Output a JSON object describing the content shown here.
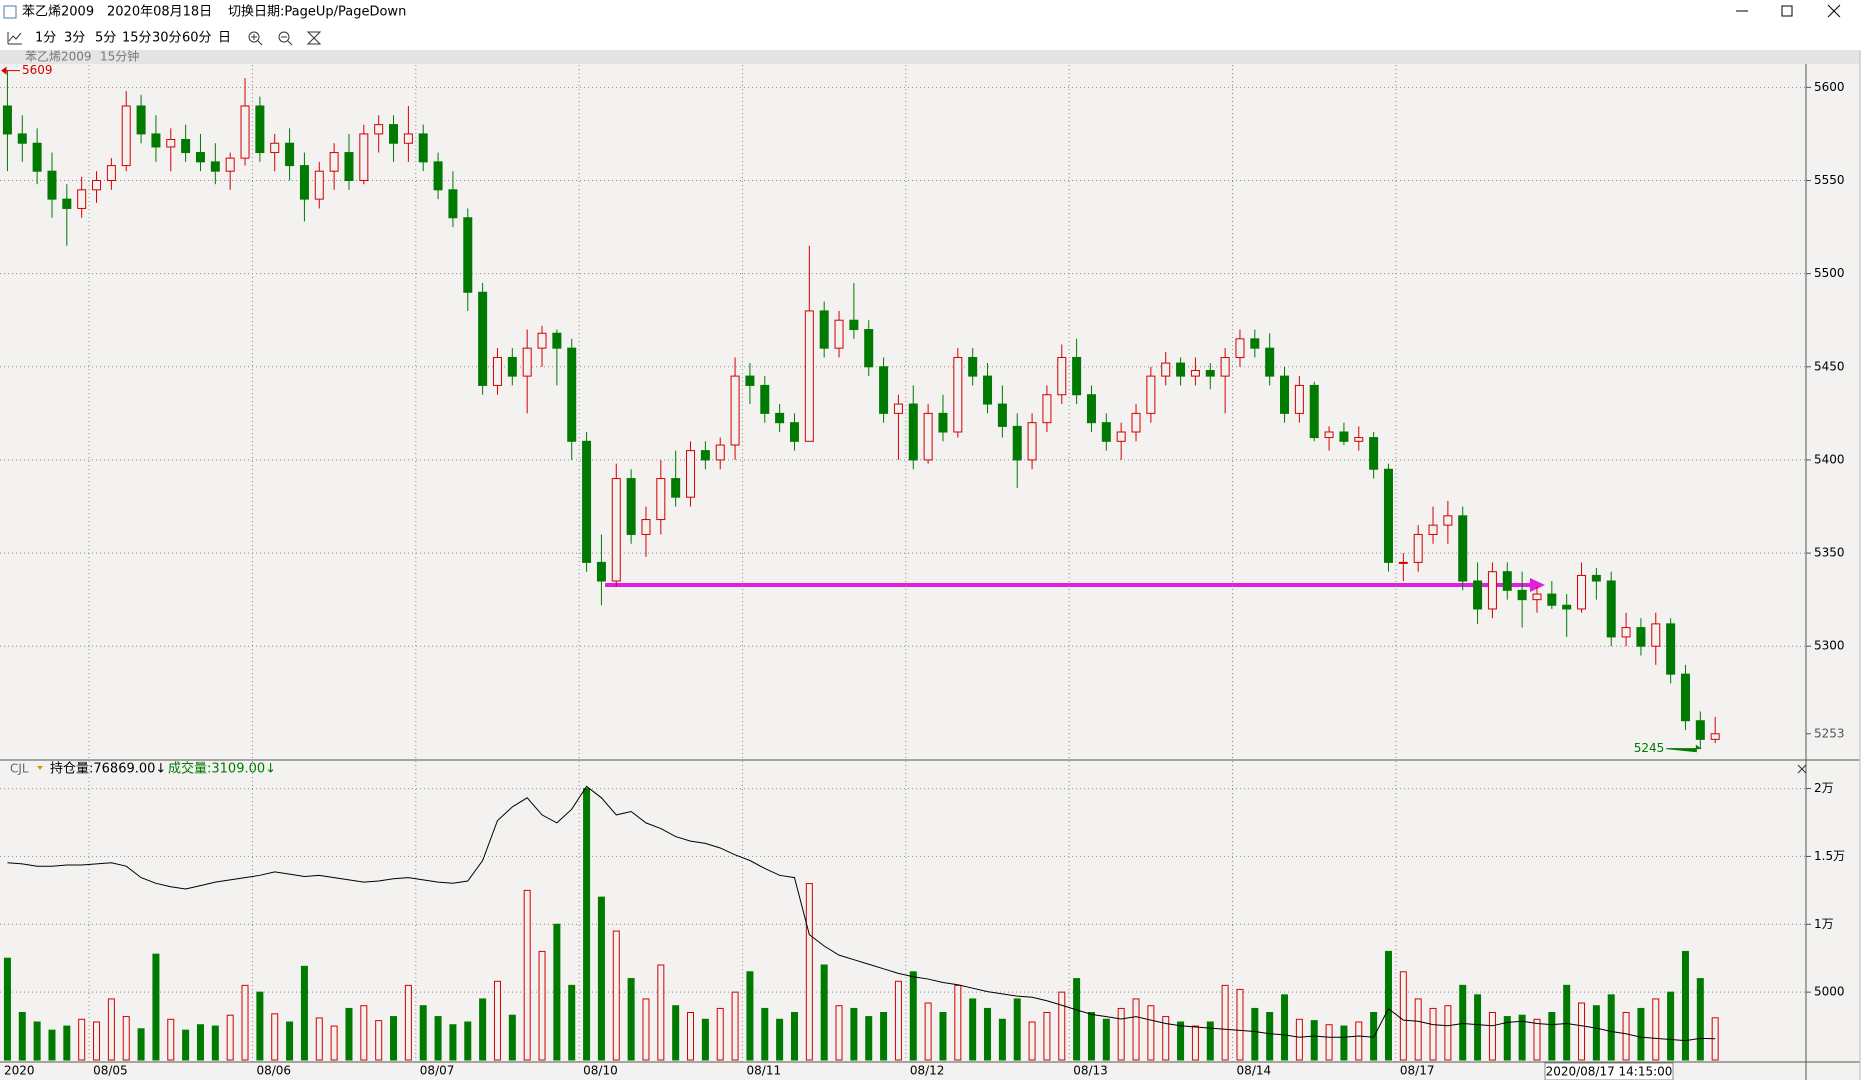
{
  "window": {
    "symbol": "苯乙烯2009",
    "date": "2020年08月18日",
    "hint": "切换日期:PageUp/PageDown"
  },
  "toolbar": [
    "1分",
    "3分",
    "5分",
    "15分",
    "30分",
    "60分",
    "日"
  ],
  "subheader": {
    "symbol": "苯乙烯2009",
    "period": "15分钟"
  },
  "cursor_time": "2020/08/17 14:15:00",
  "chart_data": [
    {
      "type": "candlestick",
      "up_color": "#d40000",
      "down_color": "#007a00",
      "grid": true,
      "ylim": [
        5240,
        5612
      ],
      "yticks": [
        5300,
        5350,
        5400,
        5450,
        5500,
        5550,
        5600
      ],
      "high_mark": 5609,
      "low_mark": 5245,
      "last_price": 5253,
      "categories": [
        "2020",
        null,
        null,
        null,
        null,
        null,
        "08/05",
        null,
        null,
        null,
        null,
        null,
        null,
        null,
        null,
        null,
        null,
        "08/06",
        null,
        null,
        null,
        null,
        null,
        null,
        null,
        null,
        null,
        null,
        "08/07",
        null,
        null,
        null,
        null,
        null,
        null,
        null,
        null,
        null,
        null,
        "08/10",
        null,
        null,
        null,
        null,
        null,
        null,
        null,
        null,
        null,
        null,
        "08/11",
        null,
        null,
        null,
        null,
        null,
        null,
        null,
        null,
        null,
        null,
        "08/12",
        null,
        null,
        null,
        null,
        null,
        null,
        null,
        null,
        null,
        null,
        "08/13",
        null,
        null,
        null,
        null,
        null,
        null,
        null,
        null,
        null,
        null,
        "08/14",
        null,
        null,
        null,
        null,
        null,
        null,
        null,
        null,
        null,
        null,
        "08/17",
        null,
        null,
        null,
        null,
        null,
        null,
        null,
        null,
        null,
        null,
        null,
        null,
        null,
        null,
        null,
        null,
        null,
        null,
        null,
        null,
        null
      ],
      "open": [
        5590,
        5575,
        5570,
        5555,
        5540,
        5535,
        5545,
        5550,
        5558,
        5590,
        5575,
        5568,
        5572,
        5565,
        5560,
        5555,
        5562,
        5590,
        5565,
        5570,
        5558,
        5540,
        5555,
        5565,
        5550,
        5575,
        5580,
        5570,
        5575,
        5560,
        5545,
        5530,
        5490,
        5440,
        5455,
        5445,
        5460,
        5468,
        5460,
        5410,
        5345,
        5335,
        5390,
        5360,
        5368,
        5390,
        5380,
        5405,
        5400,
        5408,
        5445,
        5440,
        5425,
        5420,
        5410,
        5480,
        5460,
        5475,
        5470,
        5450,
        5425,
        5430,
        5400,
        5425,
        5415,
        5455,
        5445,
        5430,
        5418,
        5400,
        5420,
        5435,
        5455,
        5435,
        5420,
        5410,
        5415,
        5425,
        5445,
        5452,
        5445,
        5448,
        5445,
        5455,
        5465,
        5460,
        5445,
        5425,
        5440,
        5412,
        5415,
        5410,
        5412,
        5395,
        5345,
        5345,
        5360,
        5365,
        5370,
        5335,
        5320,
        5340,
        5330,
        5325,
        5328,
        5322,
        5320,
        5338,
        5335,
        5305,
        5310,
        5300,
        5312,
        5285,
        5260,
        5250
      ],
      "high": [
        5609,
        5585,
        5578,
        5565,
        5548,
        5552,
        5555,
        5562,
        5598,
        5596,
        5585,
        5578,
        5580,
        5575,
        5570,
        5565,
        5605,
        5595,
        5575,
        5578,
        5565,
        5560,
        5570,
        5575,
        5580,
        5585,
        5585,
        5590,
        5580,
        5565,
        5555,
        5535,
        5495,
        5460,
        5460,
        5470,
        5472,
        5470,
        5465,
        5415,
        5360,
        5398,
        5395,
        5375,
        5400,
        5405,
        5410,
        5410,
        5412,
        5455,
        5452,
        5445,
        5430,
        5425,
        5515,
        5485,
        5480,
        5495,
        5475,
        5455,
        5435,
        5440,
        5430,
        5435,
        5460,
        5460,
        5452,
        5440,
        5425,
        5425,
        5440,
        5462,
        5465,
        5440,
        5425,
        5420,
        5430,
        5450,
        5458,
        5455,
        5455,
        5452,
        5460,
        5470,
        5470,
        5468,
        5450,
        5445,
        5442,
        5418,
        5420,
        5418,
        5415,
        5398,
        5350,
        5365,
        5375,
        5378,
        5375,
        5345,
        5345,
        5345,
        5340,
        5332,
        5335,
        5328,
        5345,
        5342,
        5340,
        5318,
        5315,
        5318,
        5315,
        5290,
        5265,
        5262
      ],
      "low": [
        5555,
        5560,
        5548,
        5530,
        5515,
        5530,
        5538,
        5545,
        5555,
        5570,
        5560,
        5555,
        5560,
        5555,
        5548,
        5545,
        5558,
        5560,
        5555,
        5550,
        5528,
        5535,
        5545,
        5545,
        5548,
        5565,
        5560,
        5560,
        5555,
        5540,
        5525,
        5480,
        5435,
        5435,
        5440,
        5425,
        5450,
        5440,
        5400,
        5340,
        5322,
        5332,
        5355,
        5348,
        5360,
        5375,
        5375,
        5395,
        5395,
        5400,
        5430,
        5420,
        5415,
        5405,
        5410,
        5455,
        5455,
        5465,
        5445,
        5420,
        5400,
        5395,
        5398,
        5410,
        5412,
        5440,
        5425,
        5412,
        5385,
        5395,
        5415,
        5430,
        5430,
        5415,
        5405,
        5400,
        5410,
        5420,
        5440,
        5440,
        5440,
        5438,
        5425,
        5450,
        5455,
        5440,
        5420,
        5420,
        5410,
        5405,
        5408,
        5405,
        5390,
        5340,
        5335,
        5340,
        5355,
        5355,
        5330,
        5312,
        5315,
        5325,
        5310,
        5318,
        5320,
        5305,
        5318,
        5325,
        5300,
        5300,
        5295,
        5290,
        5280,
        5255,
        5245,
        5248
      ],
      "close": [
        5575,
        5570,
        5555,
        5540,
        5535,
        5545,
        5550,
        5558,
        5590,
        5575,
        5568,
        5572,
        5565,
        5560,
        5555,
        5562,
        5590,
        5565,
        5570,
        5558,
        5540,
        5555,
        5565,
        5550,
        5575,
        5580,
        5570,
        5575,
        5560,
        5545,
        5530,
        5490,
        5440,
        5455,
        5445,
        5460,
        5468,
        5460,
        5410,
        5345,
        5335,
        5390,
        5360,
        5368,
        5390,
        5380,
        5405,
        5400,
        5408,
        5445,
        5440,
        5425,
        5420,
        5410,
        5480,
        5460,
        5475,
        5470,
        5450,
        5425,
        5430,
        5400,
        5425,
        5415,
        5455,
        5445,
        5430,
        5418,
        5400,
        5420,
        5435,
        5455,
        5435,
        5420,
        5410,
        5415,
        5425,
        5445,
        5452,
        5445,
        5448,
        5445,
        5455,
        5465,
        5460,
        5445,
        5425,
        5440,
        5412,
        5415,
        5410,
        5412,
        5395,
        5345,
        5345,
        5360,
        5365,
        5370,
        5335,
        5320,
        5340,
        5330,
        5325,
        5328,
        5322,
        5320,
        5338,
        5335,
        5305,
        5310,
        5300,
        5312,
        5285,
        5260,
        5250,
        5253
      ]
    },
    {
      "type": "bar",
      "title": "CJL",
      "ylim": [
        0,
        21000
      ],
      "yticks": [
        5000,
        {
          "value": 10000,
          "label": "1万"
        },
        {
          "value": 15000,
          "label": "1.5万"
        },
        {
          "value": 20000,
          "label": "2万"
        }
      ],
      "y2lim": [
        75000,
        100000
      ],
      "grid": true,
      "series": [
        {
          "name": "持仓量:76869.00↓",
          "color": "#000000",
          "axis": "y2",
          "values": [
            92300,
            92200,
            92000,
            92000,
            92100,
            92100,
            92200,
            92300,
            92000,
            91000,
            90500,
            90200,
            90000,
            90300,
            90600,
            90800,
            91000,
            91200,
            91500,
            91300,
            91100,
            91200,
            91000,
            90800,
            90600,
            90700,
            90900,
            91000,
            90800,
            90600,
            90500,
            90700,
            92500,
            96000,
            97200,
            98000,
            96500,
            95800,
            97000,
            99000,
            98000,
            96500,
            96800,
            95800,
            95300,
            94600,
            94200,
            94000,
            93600,
            93000,
            92500,
            91800,
            91200,
            91000,
            86000,
            85000,
            84200,
            83800,
            83400,
            83000,
            82600,
            82300,
            82100,
            81800,
            81600,
            81300,
            81000,
            80800,
            80600,
            80500,
            80200,
            79800,
            79400,
            79000,
            78800,
            78600,
            78800,
            78500,
            78200,
            78000,
            77900,
            77800,
            77700,
            77600,
            77500,
            77300,
            77200,
            77000,
            77100,
            77000,
            77000,
            77100,
            77000,
            79500,
            78500,
            78400,
            78100,
            78000,
            78200,
            78100,
            78000,
            78300,
            78400,
            78200,
            78100,
            78200,
            78000,
            77800,
            77500,
            77300,
            77000,
            76900,
            76800,
            76700,
            76900,
            76869
          ]
        },
        {
          "name": "成交量:3109.00↓",
          "color": "#007a00",
          "values": [
            7500,
            3500,
            2800,
            2200,
            2500,
            3000,
            2800,
            4500,
            3200,
            2300,
            7800,
            3000,
            2200,
            2600,
            2500,
            3300,
            5500,
            5000,
            3400,
            2800,
            6900,
            3100,
            2500,
            3800,
            4000,
            2900,
            3200,
            5500,
            4000,
            3200,
            2600,
            2800,
            4500,
            5800,
            3300,
            12500,
            8000,
            10000,
            5500,
            20000,
            12000,
            9500,
            6000,
            4500,
            7000,
            4000,
            3500,
            3000,
            3800,
            5000,
            6500,
            3800,
            3000,
            3500,
            13000,
            7000,
            4000,
            3800,
            3200,
            3500,
            5800,
            6500,
            4200,
            3500,
            5500,
            4500,
            3800,
            3000,
            4500,
            2800,
            3500,
            5000,
            6000,
            3500,
            3000,
            3800,
            4500,
            4000,
            3200,
            2800,
            2500,
            2800,
            5500,
            5200,
            3800,
            3500,
            4800,
            3000,
            2900,
            2600,
            2500,
            2800,
            3500,
            8000,
            6500,
            4500,
            3800,
            4000,
            5500,
            4800,
            3500,
            3200,
            3300,
            3000,
            3500,
            5500,
            4200,
            4000,
            4800,
            3500,
            3800,
            4500,
            5000,
            8000,
            6000,
            3109
          ]
        }
      ]
    }
  ]
}
